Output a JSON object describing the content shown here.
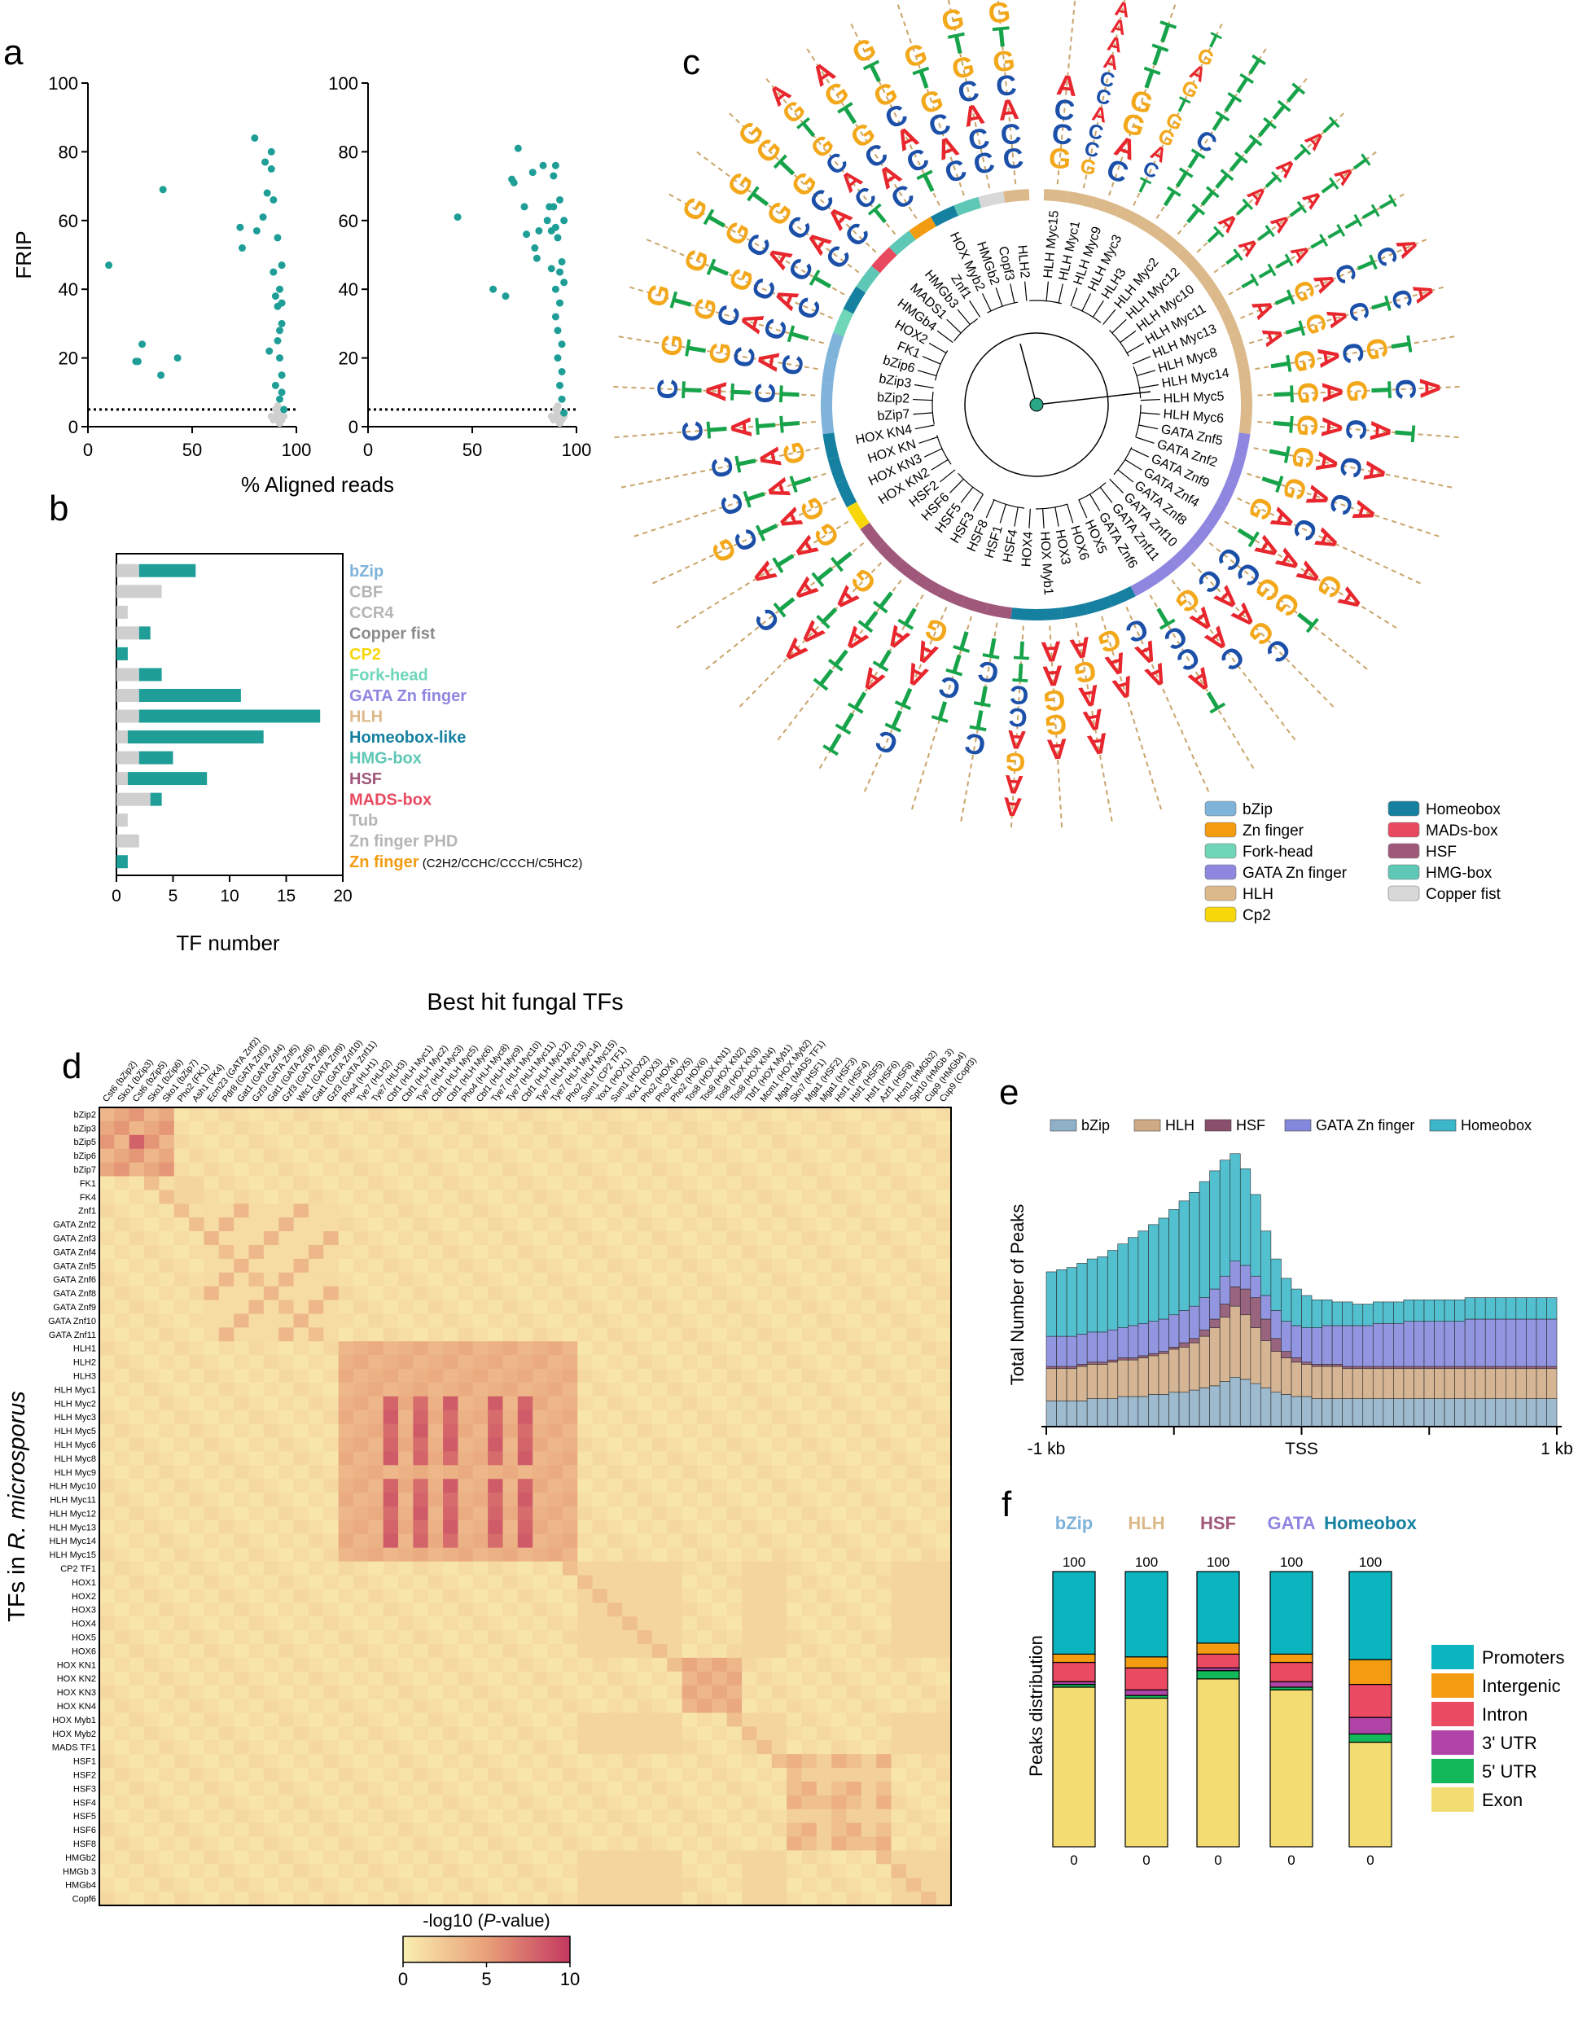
{
  "panel_letters": [
    "a",
    "b",
    "c",
    "d",
    "e",
    "f"
  ],
  "colors": {
    "teal": "#1e9e97",
    "grey": "#cfcfcf",
    "bzip": "#7fb3d9",
    "zn": "#f39c12",
    "fork": "#6fd6b8",
    "gata": "#8f86e0",
    "hlh": "#dcb98a",
    "cp2": "#f7d70a",
    "homeobox": "#1580a0",
    "mads": "#e8495f",
    "hsf": "#a0587a",
    "hmg": "#5ec7b6",
    "copper": "#d8d8d8"
  },
  "chart_data": [
    {
      "id": "a",
      "type": "scatter",
      "ylabel": "FRIP",
      "xlabel": "% Aligned reads",
      "xlim": [
        0,
        100
      ],
      "ylim": [
        0,
        100
      ],
      "xticks": [
        "0",
        "50",
        "100"
      ],
      "yticks": [
        "100",
        "80",
        "60",
        "40",
        "20",
        "0"
      ],
      "threshold": 5,
      "series": [
        {
          "points": [
            [
              10,
              47
            ],
            [
              23,
              19
            ],
            [
              24,
              19
            ],
            [
              26,
              24
            ],
            [
              35,
              15
            ],
            [
              36,
              69
            ],
            [
              43,
              20
            ],
            [
              73,
              58
            ],
            [
              74,
              52
            ],
            [
              80,
              84
            ],
            [
              81,
              57
            ],
            [
              84,
              61
            ],
            [
              85,
              77
            ],
            [
              86,
              68
            ],
            [
              87,
              22
            ],
            [
              88,
              75
            ],
            [
              88,
              80
            ],
            [
              89,
              66
            ],
            [
              89,
              45
            ],
            [
              90,
              12
            ],
            [
              90,
              38
            ],
            [
              91,
              35
            ],
            [
              91,
              55
            ],
            [
              91,
              25
            ],
            [
              92,
              40
            ],
            [
              92,
              8
            ],
            [
              92,
              28
            ],
            [
              92,
              20
            ],
            [
              93,
              47
            ],
            [
              93,
              30
            ],
            [
              93,
              15
            ],
            [
              93,
              10
            ],
            [
              93,
              36
            ],
            [
              94,
              5
            ]
          ]
        },
        {
          "points": [
            [
              43,
              61
            ],
            [
              60,
              40
            ],
            [
              66,
              38
            ],
            [
              69,
              72
            ],
            [
              70,
              71
            ],
            [
              72,
              81
            ],
            [
              75,
              64
            ],
            [
              76,
              56
            ],
            [
              79,
              74
            ],
            [
              80,
              52
            ],
            [
              81,
              49
            ],
            [
              82,
              57
            ],
            [
              84,
              76
            ],
            [
              86,
              60
            ],
            [
              87,
              64
            ],
            [
              88,
              57
            ],
            [
              88,
              46
            ],
            [
              89,
              73
            ],
            [
              89,
              64
            ],
            [
              90,
              76
            ],
            [
              90,
              58
            ],
            [
              90,
              40
            ],
            [
              90,
              32
            ],
            [
              91,
              55
            ],
            [
              91,
              28
            ],
            [
              91,
              20
            ],
            [
              92,
              66
            ],
            [
              92,
              45
            ],
            [
              92,
              36
            ],
            [
              92,
              12
            ],
            [
              93,
              48
            ],
            [
              93,
              24
            ],
            [
              93,
              16
            ],
            [
              93,
              8
            ],
            [
              94,
              60
            ],
            [
              94,
              42
            ],
            [
              94,
              4
            ]
          ]
        }
      ],
      "grey_points": [
        [
          88,
          3
        ],
        [
          89,
          2
        ],
        [
          90,
          3
        ],
        [
          91,
          2
        ],
        [
          92,
          4
        ],
        [
          93,
          2
        ],
        [
          94,
          3
        ],
        [
          90,
          5
        ],
        [
          91,
          6
        ],
        [
          92,
          1
        ]
      ]
    },
    {
      "id": "b",
      "type": "bar",
      "xlabel": "TF number",
      "xlim": [
        0,
        20
      ],
      "xticks": [
        "0",
        "5",
        "10",
        "15",
        "20"
      ],
      "categories": [
        "bZip",
        "CBF",
        "CCR4",
        "Copper fist",
        "CP2",
        "Fork-head",
        "GATA Zn finger",
        "HLH",
        "Homeobox-like",
        "HMG-box",
        "HSF",
        "MADS-box",
        "Tub",
        "Zn finger PHD",
        "Zn finger"
      ],
      "category_suffix": {
        "Zn finger": "(C2H2/CCHC/CCCH/C5HC2)"
      },
      "category_colors": [
        "#7fb3d9",
        "#b5b5b5",
        "#b5b5b5",
        "#8a8a8a",
        "#f7d70a",
        "#6fd6b8",
        "#8f86e0",
        "#dcb98a",
        "#1580a0",
        "#5ec7b6",
        "#a0587a",
        "#e8495f",
        "#b5b5b5",
        "#b5b5b5",
        "#f39c12"
      ],
      "series": [
        {
          "name": "grey",
          "values": [
            2,
            4,
            1,
            2,
            0,
            2,
            2,
            2,
            1,
            2,
            1,
            3,
            1,
            2,
            0
          ]
        },
        {
          "name": "teal",
          "values": [
            5,
            0,
            0,
            1,
            1,
            2,
            9,
            16,
            12,
            3,
            7,
            1,
            0,
            0,
            1
          ]
        }
      ]
    },
    {
      "id": "c",
      "type": "table",
      "tree_labels": [
        "HLH Myc15",
        "HLH Myc1",
        "HLH Myc9",
        "HLH Myc3",
        "HLH3",
        "HLH Myc2",
        "HLH Myc12",
        "HLH Myc10",
        "HLH Myc11",
        "HLH Myc13",
        "HLH Myc8",
        "HLH Myc14",
        "HLH Myc5",
        "HLH Myc6",
        "GATA Znf5",
        "GATA Znf2",
        "GATA Znf9",
        "GATA Znf4",
        "GATA Znf8",
        "GATA Znf10",
        "GATA Znf11",
        "GATA Znf6",
        "HOX5",
        "HOX6",
        "HOX3",
        "HOX Myb1",
        "HOX4",
        "HSF4",
        "HSF1",
        "HSF8",
        "HSF3",
        "HSF5",
        "HSF6",
        "HSF2",
        "HOX KN2",
        "HOX KN3",
        "HOX KN",
        "HOX KN4",
        "bZip7",
        "bZip2",
        "bZip3",
        "bZip6",
        "FK1",
        "HOX2",
        "HMGb4",
        "MADS1",
        "HMGb3",
        "Znf1",
        "HOX Myb2",
        "HMGb2",
        "Copf3",
        "HLH2"
      ],
      "motifs": [
        "GCCA",
        "GCCACCAAAA",
        "CAGGTTT",
        "TCAGGTGAGT",
        "TTTCTTTT",
        "TTTTTTTT",
        "TATATATAT",
        "TATATATAT",
        "TTTATTTTT",
        "ATGACTCA",
        "ATGACTCA",
        "TGACGT",
        "TGAGTCA",
        "TGACAT",
        "TGACA",
        "TGACA",
        "GACA",
        "TAAAGA",
        "CCGGT",
        "CAAGC",
        "GAAC",
        "TCCAT",
        "CAA",
        "GAA",
        "AGAAA",
        "AAGGA",
        "TTCCAGAA",
        "TCTTC",
        "TTCT",
        "GAATTC",
        "TATATTT",
        "TTATT",
        "GATAA",
        "TTATC",
        "GATA",
        "GATCG",
        "TATC",
        "GATC",
        "TTATC",
        "TCTATC",
        "CACGTG",
        "TCACGTG",
        "CACGTG",
        "TCACGTG",
        "CACGTG",
        "CACGTGG",
        "TCACGTGA",
        "CACGTGA",
        "TCACGTG",
        "CACGTG",
        "CCACGTG",
        "CCACGTG"
      ],
      "legend": [
        {
          "label": "bZip",
          "color": "#7fb3d9"
        },
        {
          "label": "Zn finger",
          "color": "#f39c12"
        },
        {
          "label": "Fork-head",
          "color": "#6fd6b8"
        },
        {
          "label": "GATA Zn finger",
          "color": "#8f86e0"
        },
        {
          "label": "HLH",
          "color": "#dcb98a"
        },
        {
          "label": "Cp2",
          "color": "#f7d70a"
        },
        {
          "label": "Homeobox",
          "color": "#1580a0"
        },
        {
          "label": "MADs-box",
          "color": "#e8495f"
        },
        {
          "label": "HSF",
          "color": "#a0587a"
        },
        {
          "label": "HMG-box",
          "color": "#5ec7b6"
        },
        {
          "label": "Copper fist",
          "color": "#d8d8d8"
        }
      ]
    },
    {
      "id": "d",
      "type": "heatmap",
      "title": "Best hit fungal TFs",
      "ylabel_prefix": "TFs in ",
      "ylabel_species": "R. microsporus",
      "colorbar_title_prefix": "-log10 (",
      "colorbar_title_var": "P",
      "colorbar_title_suffix": "-value)",
      "colorbar_ticks": [
        "0",
        "5",
        "10"
      ],
      "vmin": 0,
      "vmax": 10,
      "columns": [
        "Cst6 (bZip2)",
        "Sko1 (bZip3)",
        "Cst6 (bZip5)",
        "Sko1 (bZip6)",
        "Sko1 (bZip7)",
        "Pho2 (FK1)",
        "Ash1 (FK4)",
        "Ecm23 (GATA Znf2)",
        "Pdr8 (GATA Znf3)",
        "Gat1 (GATA Znf4)",
        "Gzf3 (GATA Znf5)",
        "Gat1 (GATA Znf6)",
        "Gzf3 (GATA Znf8)",
        "Wtc1 (GATA Znf9)",
        "Gat1 (GATA Znf10)",
        "Gzf3 (GATA Znf11)",
        "Pho4 (HLH1)",
        "Tye7 (HLH2)",
        "Tye7 (HLH3)",
        "Cbf1 (HLH Myc1)",
        "Cbf1 (HLH Myc2)",
        "Tye7 (HLH Myc3)",
        "Cbf1 (HLH Myc5)",
        "Cbf1 (HLH Myc6)",
        "Pho4 (HLH Myc8)",
        "Cbf1 (HLH Myc9)",
        "Tye7 (HLH Myc10)",
        "Tye7 (HLH Myc11)",
        "Cbf1 (HLH Myc12)",
        "Tye7 (HLH Myc13)",
        "Tye7 (HLH Myc14)",
        "Pho2 (HLH Myc15)",
        "Sum1 (CP2 TF1)",
        "Yox1 (HOX1)",
        "Sum1 (HOX2)",
        "Yox1 (HOX3)",
        "Pho2 (HOX4)",
        "Pho2 (HOX5)",
        "Pho2 (HOX6)",
        "Tos8 (HOX KN1)",
        "Tos8 (HOX KN2)",
        "Tos8 (HOX KN3)",
        "Tos8 (HOX KN4)",
        "Tbf1 (HOX Myb1)",
        "Mcm1 (HOX Myb2)",
        "Mga1 (MADS TF1)",
        "Skn7 (HSF1)",
        "Mga1 (HSF2)",
        "Mga1 (HSF3)",
        "Hsf1 (HSF4)",
        "Hsf1 (HSF5)",
        "Hsf1 (HSF6)",
        "Azf1 (HSF8)",
        "Hcm1 (HMGb2)",
        "Spt10 (HMGb 3)",
        "Cup9 (HMGb4)",
        "Cup9 (Copf3)"
      ],
      "rows": [
        "bZip2",
        "bZip3",
        "bZip5",
        "bZip6",
        "bZip7",
        "FK1",
        "FK4",
        "Znf1",
        "GATA Znf2",
        "GATA Znf3",
        "GATA Znf4",
        "GATA Znf5",
        "GATA Znf6",
        "GATA Znf8",
        "GATA Znf9",
        "GATA Znf10",
        "GATA Znf11",
        "HLH1",
        "HLH2",
        "HLH3",
        "HLH Myc1",
        "HLH Myc2",
        "HLH Myc3",
        "HLH Myc5",
        "HLH Myc6",
        "HLH Myc8",
        "HLH Myc9",
        "HLH Myc10",
        "HLH Myc11",
        "HLH Myc12",
        "HLH Myc13",
        "HLH Myc14",
        "HLH Myc15",
        "CP2 TF1",
        "HOX1",
        "HOX2",
        "HOX3",
        "HOX4",
        "HOX5",
        "HOX6",
        "HOX KN1",
        "HOX KN2",
        "HOX KN3",
        "HOX KN4",
        "HOX Myb1",
        "HOX Myb2",
        "MADS TF1",
        "HSF1",
        "HSF2",
        "HSF3",
        "HSF4",
        "HSF5",
        "HSF6",
        "HSF8",
        "HMGb2",
        "HMGb 3",
        "HMGb4",
        "Copf6"
      ]
    },
    {
      "id": "e",
      "type": "area",
      "ylabel": "Total Number of Peaks",
      "xticks": [
        "-1 kb",
        "TSS",
        "1 kb"
      ],
      "series": [
        {
          "name": "bZip",
          "color": "#8fb1c8",
          "values": [
            12,
            12,
            12,
            12,
            13,
            13,
            13,
            14,
            14,
            14,
            15,
            15,
            16,
            16,
            17,
            18,
            19,
            21,
            23,
            22,
            20,
            18,
            16,
            15,
            14,
            14,
            13,
            13,
            13,
            13,
            13,
            13,
            13,
            13,
            13,
            13,
            13,
            13,
            13,
            13,
            13,
            13,
            13,
            13,
            13,
            13,
            13,
            13,
            13,
            13
          ]
        },
        {
          "name": "HLH",
          "color": "#cfab85",
          "values": [
            15,
            15,
            15,
            16,
            16,
            16,
            17,
            17,
            17,
            18,
            18,
            19,
            20,
            21,
            22,
            24,
            27,
            30,
            33,
            30,
            26,
            22,
            19,
            17,
            16,
            15,
            15,
            15,
            15,
            14,
            14,
            14,
            14,
            14,
            14,
            14,
            14,
            14,
            14,
            14,
            14,
            14,
            14,
            14,
            14,
            14,
            14,
            14,
            14,
            14
          ]
        },
        {
          "name": "HSF",
          "color": "#8a4f6c",
          "values": [
            1,
            1,
            1,
            1,
            1,
            1,
            1,
            1,
            1,
            1,
            1,
            1,
            1,
            2,
            2,
            3,
            4,
            6,
            9,
            12,
            14,
            10,
            6,
            3,
            2,
            1,
            1,
            1,
            1,
            1,
            1,
            1,
            1,
            1,
            1,
            1,
            1,
            1,
            1,
            1,
            1,
            1,
            1,
            1,
            1,
            1,
            1,
            1,
            1,
            1
          ]
        },
        {
          "name": "GATA Zn finger",
          "color": "#8388dc",
          "values": [
            14,
            14,
            14,
            14,
            14,
            14,
            14,
            14,
            15,
            15,
            15,
            15,
            15,
            15,
            15,
            15,
            14,
            13,
            12,
            11,
            10,
            11,
            13,
            14,
            15,
            16,
            17,
            18,
            18,
            19,
            19,
            19,
            20,
            20,
            20,
            21,
            21,
            21,
            21,
            21,
            21,
            22,
            22,
            22,
            22,
            22,
            22,
            22,
            22,
            22
          ]
        },
        {
          "name": "Homeobox",
          "color": "#3bb7c9",
          "values": [
            30,
            31,
            32,
            33,
            34,
            35,
            37,
            39,
            41,
            43,
            45,
            47,
            49,
            51,
            53,
            54,
            55,
            54,
            50,
            45,
            38,
            30,
            24,
            20,
            17,
            15,
            13,
            12,
            11,
            11,
            10,
            10,
            10,
            10,
            10,
            10,
            10,
            10,
            10,
            10,
            10,
            10,
            10,
            10,
            10,
            10,
            10,
            10,
            10,
            10
          ]
        }
      ]
    },
    {
      "id": "f",
      "type": "bar",
      "ylabel": "Peaks distribution",
      "categories": [
        "bZip",
        "HLH",
        "HSF",
        "GATA",
        "Homeobox"
      ],
      "category_colors": [
        "#7fb3d9",
        "#dcb98a",
        "#a0587a",
        "#8f86e0",
        "#1580a0"
      ],
      "top_label": "100",
      "bottom_label": "0",
      "series": [
        {
          "name": "Exon",
          "color": "#f3dd72",
          "values": [
            58,
            54,
            61,
            57,
            38
          ]
        },
        {
          "name": "5' UTR",
          "color": "#12b85a",
          "values": [
            1,
            1,
            3,
            1,
            3
          ]
        },
        {
          "name": "3' UTR",
          "color": "#b043a6",
          "values": [
            1,
            2,
            1,
            2,
            6
          ]
        },
        {
          "name": "Intron",
          "color": "#ea4a62",
          "values": [
            7,
            8,
            5,
            7,
            12
          ]
        },
        {
          "name": "Intergenic",
          "color": "#f39c12",
          "values": [
            3,
            4,
            4,
            3,
            9
          ]
        },
        {
          "name": "Promoters",
          "color": "#0bb5bf",
          "values": [
            30,
            31,
            26,
            30,
            32
          ]
        }
      ]
    }
  ]
}
